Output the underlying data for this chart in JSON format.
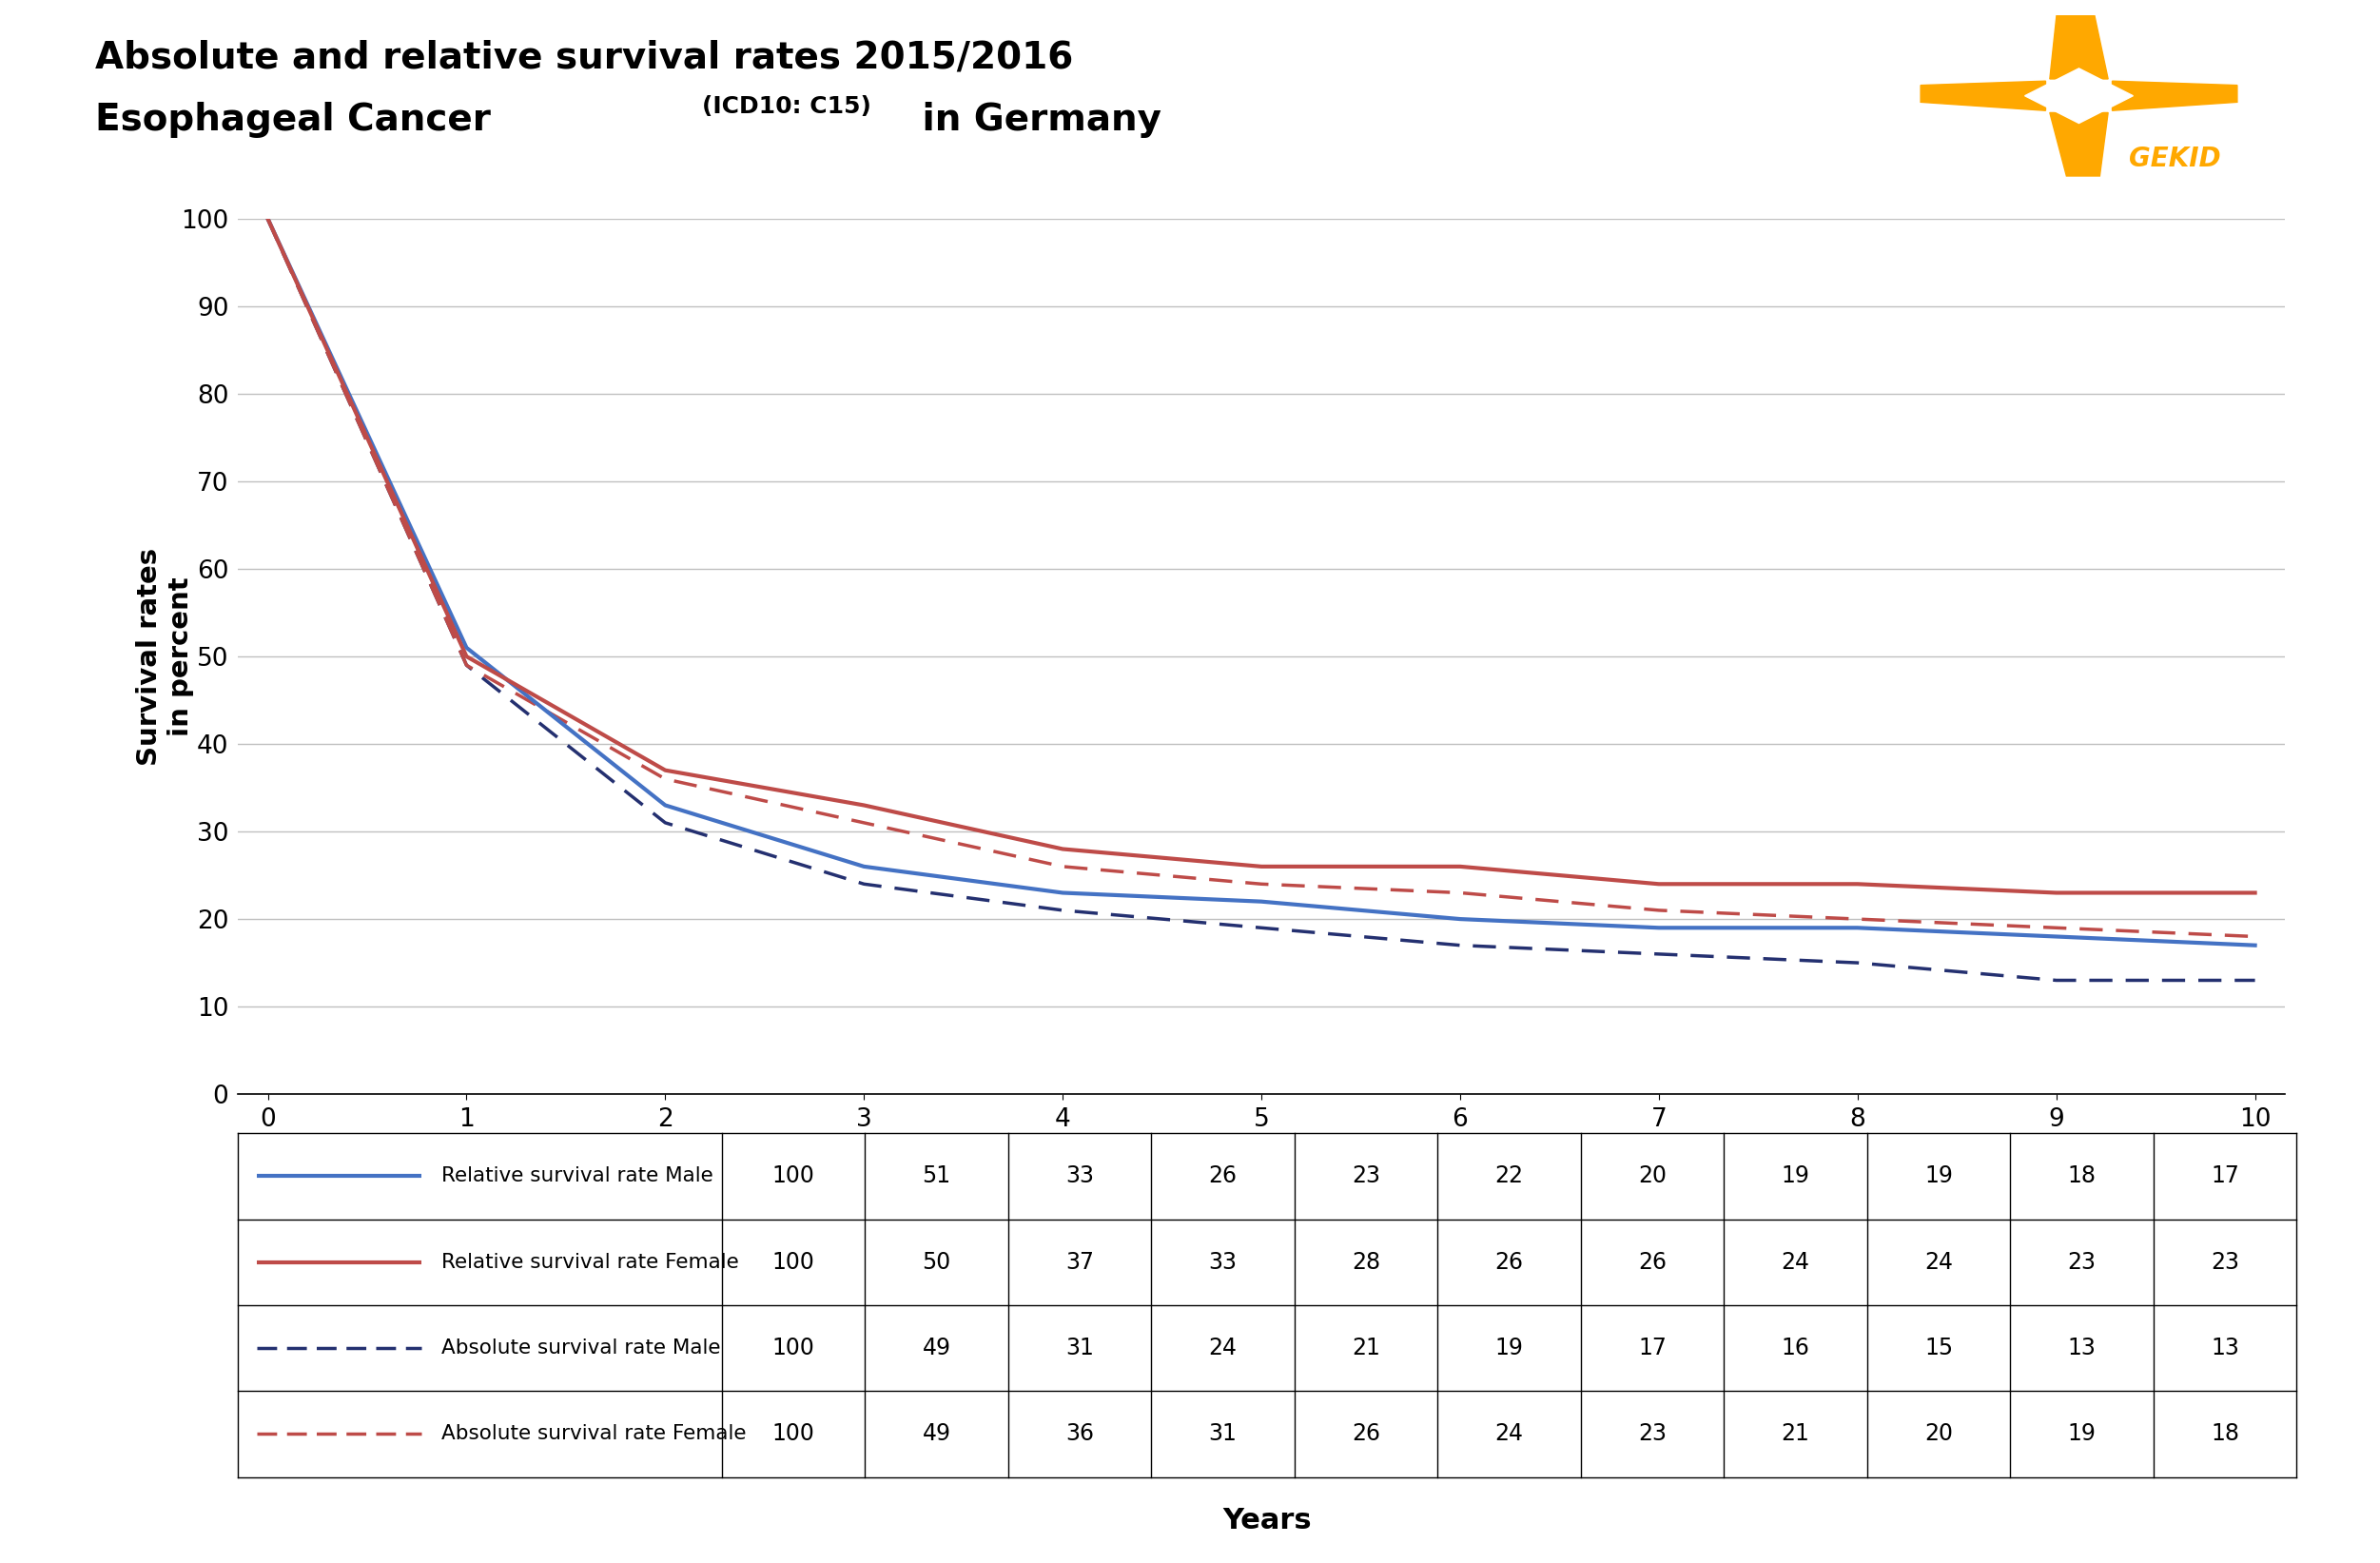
{
  "title_line1": "Absolute and relative survival rates 2015/2016",
  "title_line2_bold": "Esophageal Cancer",
  "title_line2_small": "(ICD10: C15)",
  "title_line2_end": "in Germany",
  "ylabel": "Survival rates\nin percent",
  "xlabel": "Years",
  "years": [
    0,
    1,
    2,
    3,
    4,
    5,
    6,
    7,
    8,
    9,
    10
  ],
  "relative_male": [
    100,
    51,
    33,
    26,
    23,
    22,
    20,
    19,
    19,
    18,
    17
  ],
  "relative_female": [
    100,
    50,
    37,
    33,
    28,
    26,
    26,
    24,
    24,
    23,
    23
  ],
  "absolute_male": [
    100,
    49,
    31,
    24,
    21,
    19,
    17,
    16,
    15,
    13,
    13
  ],
  "absolute_female": [
    100,
    49,
    36,
    31,
    26,
    24,
    23,
    21,
    20,
    19,
    18
  ],
  "color_rel_male": "#4472C4",
  "color_rel_female": "#BE4B48",
  "color_abs_male": "#243070",
  "color_abs_female": "#BE4B48",
  "ylim": [
    0,
    100
  ],
  "grid_color": "#C0C0C0",
  "orange": "#FFA800",
  "row_labels": [
    "Relative survival rate Male",
    "Relative survival rate Female",
    "Absolute survival rate Male",
    "Absolute survival rate Female"
  ]
}
